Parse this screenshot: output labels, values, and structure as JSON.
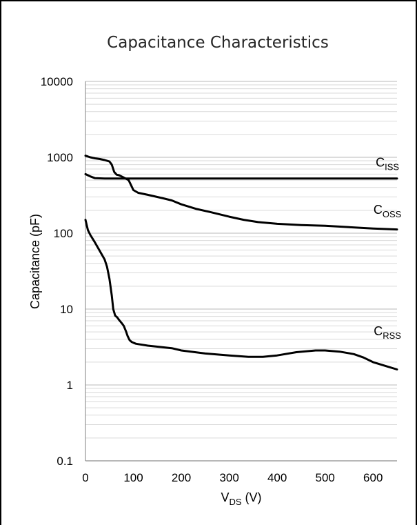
{
  "chart_data": {
    "type": "line",
    "title": "Capacitance Characteristics",
    "xlabel": {
      "main": "V",
      "sub": "DS",
      "unit": " (V)"
    },
    "ylabel": "Capacitance (pF)",
    "xlim": [
      0,
      650
    ],
    "ylim": [
      0.1,
      10000
    ],
    "yscale": "log",
    "x_ticks": [
      "0",
      "100",
      "200",
      "300",
      "400",
      "500",
      "600"
    ],
    "x_tick_values": [
      0,
      100,
      200,
      300,
      400,
      500,
      600
    ],
    "y_ticks": [
      "0.1",
      "1",
      "10",
      "100",
      "1000",
      "10000"
    ],
    "y_tick_values": [
      0.1,
      1,
      10,
      100,
      1000,
      10000
    ],
    "grid": "minor-log-and-major",
    "series": [
      {
        "name": "CISS",
        "label_main": "C",
        "label_sub": "ISS",
        "label_at": {
          "x": 630,
          "y": 750
        },
        "x": [
          0,
          10,
          20,
          40,
          60,
          80,
          100,
          200,
          300,
          400,
          500,
          600,
          650
        ],
        "y": [
          600,
          560,
          530,
          525,
          525,
          525,
          525,
          525,
          525,
          525,
          525,
          525,
          525
        ]
      },
      {
        "name": "COSS",
        "label_main": "C",
        "label_sub": "OSS",
        "label_at": {
          "x": 630,
          "y": 180
        },
        "x": [
          0,
          10,
          20,
          30,
          40,
          50,
          55,
          60,
          65,
          70,
          75,
          80,
          90,
          95,
          100,
          110,
          130,
          160,
          180,
          200,
          230,
          260,
          300,
          330,
          360,
          400,
          450,
          500,
          550,
          600,
          650
        ],
        "y": [
          1050,
          1000,
          970,
          950,
          920,
          880,
          800,
          640,
          590,
          580,
          560,
          540,
          500,
          430,
          370,
          340,
          320,
          290,
          270,
          240,
          210,
          190,
          165,
          150,
          140,
          133,
          128,
          125,
          120,
          115,
          112
        ]
      },
      {
        "name": "CRSS",
        "label_main": "C",
        "label_sub": "RSS",
        "label_at": {
          "x": 630,
          "y": 4.5
        },
        "x": [
          0,
          5,
          10,
          20,
          30,
          40,
          45,
          50,
          55,
          58,
          62,
          66,
          70,
          75,
          80,
          85,
          88,
          92,
          96,
          100,
          105,
          110,
          130,
          160,
          180,
          200,
          250,
          300,
          340,
          370,
          400,
          440,
          480,
          500,
          530,
          560,
          580,
          600,
          630,
          650
        ],
        "y": [
          150,
          110,
          95,
          75,
          58,
          45,
          36,
          25,
          15,
          10,
          8.2,
          7.8,
          7.2,
          6.6,
          6.0,
          5.0,
          4.4,
          3.9,
          3.7,
          3.6,
          3.5,
          3.45,
          3.3,
          3.15,
          3.05,
          2.85,
          2.6,
          2.45,
          2.35,
          2.35,
          2.45,
          2.7,
          2.85,
          2.85,
          2.75,
          2.55,
          2.3,
          2.0,
          1.75,
          1.6
        ]
      }
    ],
    "colors": {
      "line": "#000000",
      "grid": "#d9d9d9",
      "border": "#000000"
    }
  }
}
